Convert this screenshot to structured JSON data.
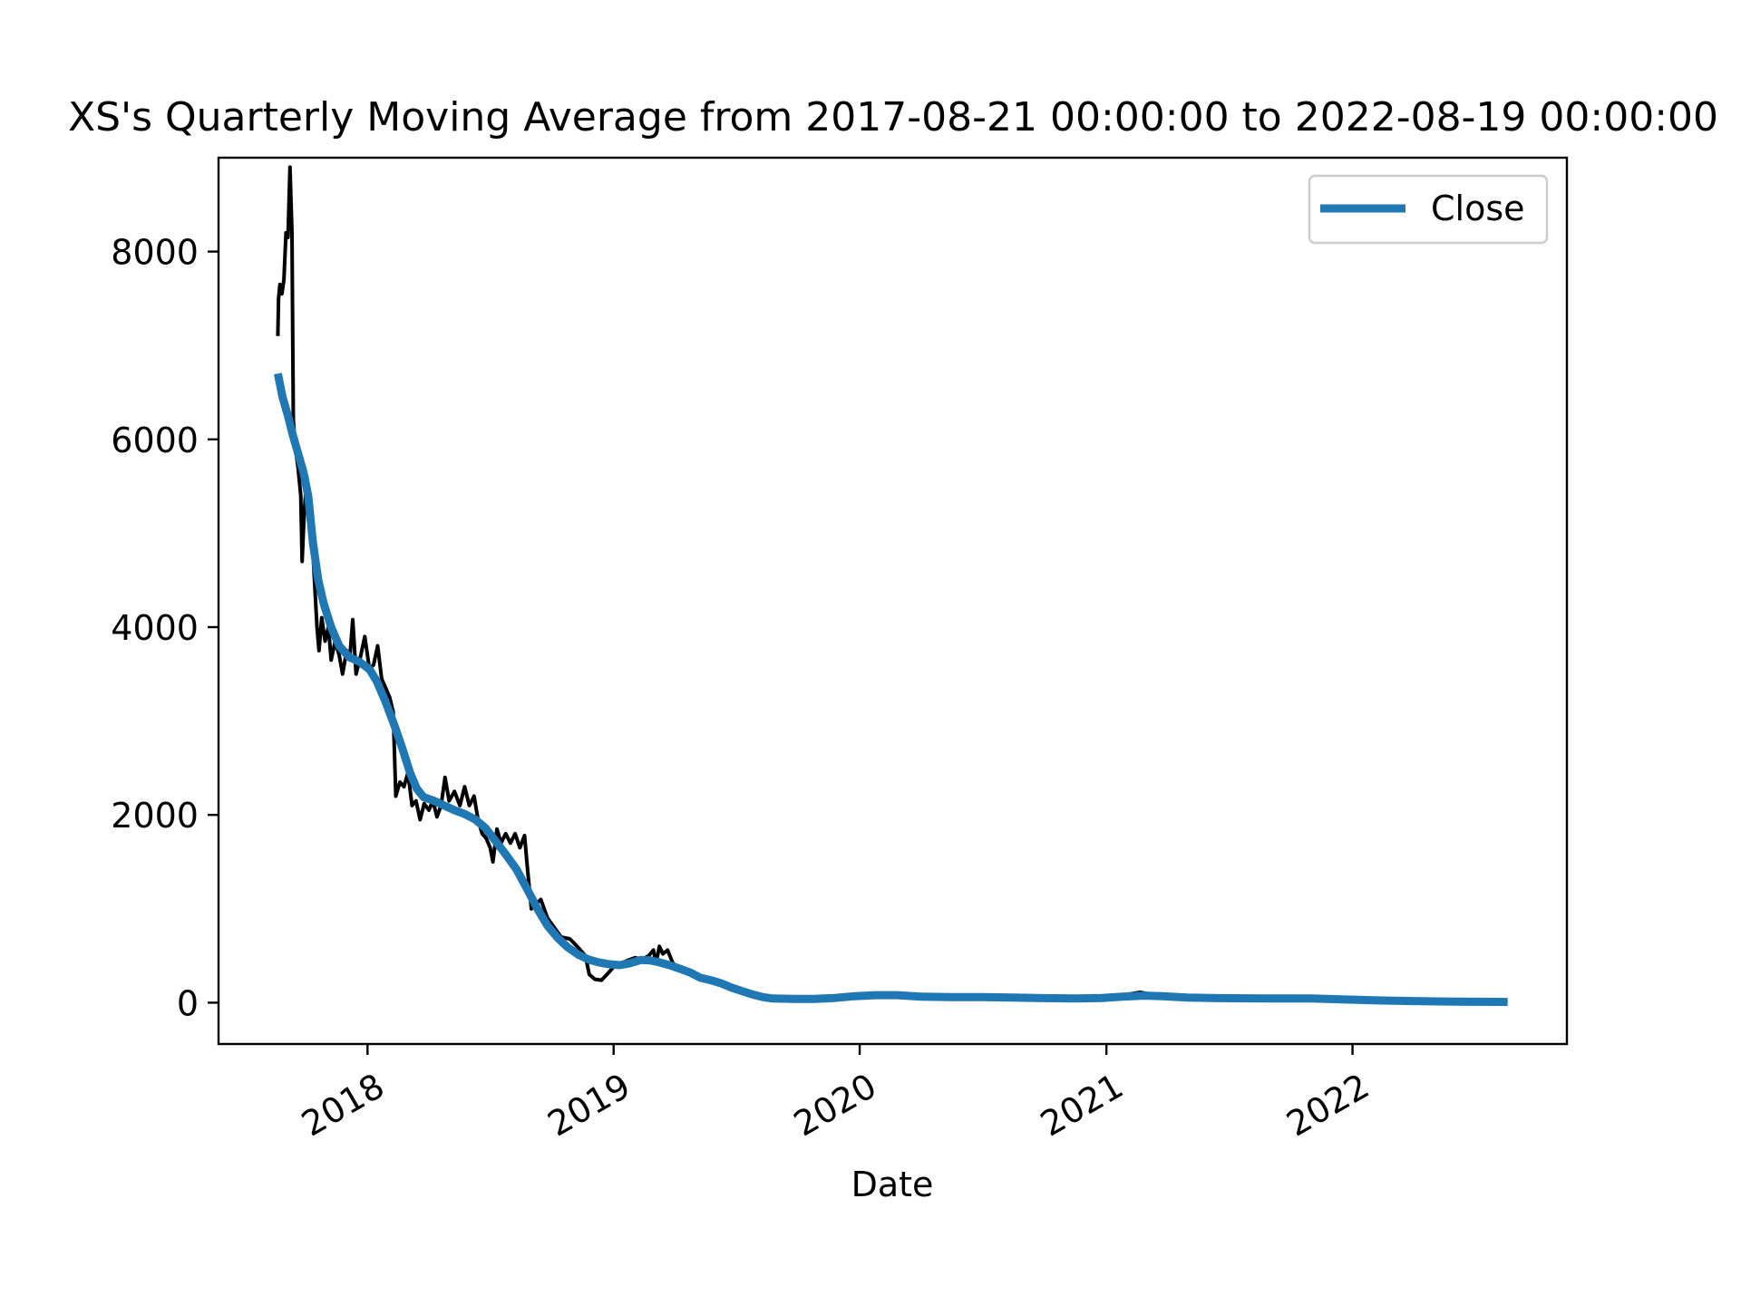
{
  "chart_data": {
    "type": "line",
    "title": "XS's Quarterly Moving Average from 2017-08-21 00:00:00 to 2022-08-19 00:00:00",
    "xlabel": "Date",
    "ylabel": "",
    "xlim": [
      "2017-05-25",
      "2022-11-15"
    ],
    "ylim": [
      -440,
      9000
    ],
    "x_ticks": [
      {
        "date": "2018-01-01",
        "label": "2018"
      },
      {
        "date": "2019-01-01",
        "label": "2019"
      },
      {
        "date": "2020-01-01",
        "label": "2020"
      },
      {
        "date": "2021-01-01",
        "label": "2021"
      },
      {
        "date": "2022-01-01",
        "label": "2022"
      }
    ],
    "y_ticks": [
      0,
      2000,
      4000,
      6000,
      8000
    ],
    "grid": false,
    "legend": {
      "position": "top-right",
      "entries": [
        "Close"
      ]
    },
    "series": [
      {
        "key": "raw",
        "color": "#000000",
        "points": [
          [
            "2017-08-21",
            7100
          ],
          [
            "2017-08-22",
            7500
          ],
          [
            "2017-08-24",
            7650
          ],
          [
            "2017-08-27",
            7550
          ],
          [
            "2017-08-30",
            7700
          ],
          [
            "2017-09-02",
            8200
          ],
          [
            "2017-09-05",
            8150
          ],
          [
            "2017-09-08",
            8900
          ],
          [
            "2017-09-11",
            8200
          ],
          [
            "2017-09-13",
            6200
          ],
          [
            "2017-09-16",
            5900
          ],
          [
            "2017-09-20",
            5700
          ],
          [
            "2017-09-24",
            5400
          ],
          [
            "2017-09-26",
            4700
          ],
          [
            "2017-09-29",
            5200
          ],
          [
            "2017-10-03",
            5600
          ],
          [
            "2017-10-08",
            5200
          ],
          [
            "2017-10-12",
            4800
          ],
          [
            "2017-10-18",
            4000
          ],
          [
            "2017-10-21",
            3750
          ],
          [
            "2017-10-25",
            4100
          ],
          [
            "2017-10-30",
            3850
          ],
          [
            "2017-11-04",
            4000
          ],
          [
            "2017-11-08",
            3650
          ],
          [
            "2017-11-14",
            3850
          ],
          [
            "2017-11-20",
            3700
          ],
          [
            "2017-11-25",
            3500
          ],
          [
            "2017-12-01",
            3750
          ],
          [
            "2017-12-06",
            3700
          ],
          [
            "2017-12-10",
            4080
          ],
          [
            "2017-12-15",
            3500
          ],
          [
            "2017-12-22",
            3700
          ],
          [
            "2017-12-28",
            3900
          ],
          [
            "2018-01-04",
            3550
          ],
          [
            "2018-01-10",
            3600
          ],
          [
            "2018-01-16",
            3800
          ],
          [
            "2018-01-22",
            3450
          ],
          [
            "2018-01-28",
            3350
          ],
          [
            "2018-02-03",
            3250
          ],
          [
            "2018-02-08",
            3100
          ],
          [
            "2018-02-12",
            2200
          ],
          [
            "2018-02-18",
            2350
          ],
          [
            "2018-02-24",
            2300
          ],
          [
            "2018-03-02",
            2450
          ],
          [
            "2018-03-08",
            2100
          ],
          [
            "2018-03-14",
            2150
          ],
          [
            "2018-03-20",
            1950
          ],
          [
            "2018-03-26",
            2120
          ],
          [
            "2018-04-02",
            2050
          ],
          [
            "2018-04-08",
            2150
          ],
          [
            "2018-04-14",
            1980
          ],
          [
            "2018-04-20",
            2100
          ],
          [
            "2018-04-26",
            2400
          ],
          [
            "2018-05-02",
            2150
          ],
          [
            "2018-05-10",
            2250
          ],
          [
            "2018-05-18",
            2100
          ],
          [
            "2018-05-25",
            2300
          ],
          [
            "2018-06-01",
            2100
          ],
          [
            "2018-06-08",
            2200
          ],
          [
            "2018-06-14",
            1950
          ],
          [
            "2018-06-20",
            1800
          ],
          [
            "2018-06-26",
            1750
          ],
          [
            "2018-07-02",
            1650
          ],
          [
            "2018-07-06",
            1500
          ],
          [
            "2018-07-12",
            1850
          ],
          [
            "2018-07-18",
            1700
          ],
          [
            "2018-07-25",
            1800
          ],
          [
            "2018-08-01",
            1700
          ],
          [
            "2018-08-08",
            1800
          ],
          [
            "2018-08-15",
            1650
          ],
          [
            "2018-08-22",
            1780
          ],
          [
            "2018-08-26",
            1450
          ],
          [
            "2018-09-01",
            1000
          ],
          [
            "2018-09-08",
            1050
          ],
          [
            "2018-09-15",
            1100
          ],
          [
            "2018-09-25",
            900
          ],
          [
            "2018-10-05",
            800
          ],
          [
            "2018-10-15",
            700
          ],
          [
            "2018-10-28",
            680
          ],
          [
            "2018-11-08",
            600
          ],
          [
            "2018-11-20",
            500
          ],
          [
            "2018-11-26",
            300
          ],
          [
            "2018-12-04",
            250
          ],
          [
            "2018-12-14",
            240
          ],
          [
            "2018-12-22",
            300
          ],
          [
            "2019-01-01",
            380
          ],
          [
            "2019-01-12",
            420
          ],
          [
            "2019-01-22",
            450
          ],
          [
            "2019-02-02",
            480
          ],
          [
            "2019-02-12",
            460
          ],
          [
            "2019-02-22",
            500
          ],
          [
            "2019-03-01",
            560
          ],
          [
            "2019-03-05",
            420
          ],
          [
            "2019-03-10",
            600
          ],
          [
            "2019-03-15",
            520
          ],
          [
            "2019-03-22",
            560
          ],
          [
            "2019-03-30",
            420
          ],
          [
            "2019-04-10",
            360
          ],
          [
            "2019-04-22",
            320
          ],
          [
            "2019-05-05",
            280
          ],
          [
            "2019-05-20",
            240
          ],
          [
            "2019-06-05",
            200
          ],
          [
            "2019-06-25",
            160
          ],
          [
            "2019-07-15",
            120
          ],
          [
            "2019-08-05",
            80
          ],
          [
            "2019-08-25",
            55
          ],
          [
            "2019-09-20",
            45
          ],
          [
            "2019-10-20",
            50
          ],
          [
            "2019-11-20",
            60
          ],
          [
            "2019-12-20",
            75
          ],
          [
            "2020-01-20",
            85
          ],
          [
            "2020-02-20",
            95
          ],
          [
            "2020-03-15",
            70
          ],
          [
            "2020-04-20",
            60
          ],
          [
            "2020-06-01",
            60
          ],
          [
            "2020-07-15",
            55
          ],
          [
            "2020-09-01",
            50
          ],
          [
            "2020-10-15",
            45
          ],
          [
            "2020-12-01",
            50
          ],
          [
            "2021-01-15",
            70
          ],
          [
            "2021-02-20",
            110
          ],
          [
            "2021-03-15",
            80
          ],
          [
            "2021-04-20",
            60
          ],
          [
            "2021-06-01",
            55
          ],
          [
            "2021-08-01",
            50
          ],
          [
            "2021-10-01",
            45
          ],
          [
            "2021-12-01",
            35
          ],
          [
            "2022-02-01",
            25
          ],
          [
            "2022-04-01",
            20
          ],
          [
            "2022-06-01",
            15
          ],
          [
            "2022-08-19",
            12
          ]
        ]
      },
      {
        "key": "ma",
        "name": "Close",
        "color": "#1f77b4",
        "points": [
          [
            "2017-08-21",
            6700
          ],
          [
            "2017-08-28",
            6450
          ],
          [
            "2017-09-05",
            6250
          ],
          [
            "2017-09-12",
            6050
          ],
          [
            "2017-09-20",
            5850
          ],
          [
            "2017-09-28",
            5650
          ],
          [
            "2017-10-05",
            5400
          ],
          [
            "2017-10-12",
            4900
          ],
          [
            "2017-10-20",
            4500
          ],
          [
            "2017-10-28",
            4250
          ],
          [
            "2017-11-08",
            4000
          ],
          [
            "2017-11-20",
            3800
          ],
          [
            "2017-12-05",
            3680
          ],
          [
            "2017-12-20",
            3630
          ],
          [
            "2018-01-04",
            3550
          ],
          [
            "2018-01-15",
            3420
          ],
          [
            "2018-01-28",
            3200
          ],
          [
            "2018-02-10",
            2950
          ],
          [
            "2018-02-22",
            2700
          ],
          [
            "2018-03-05",
            2450
          ],
          [
            "2018-03-15",
            2280
          ],
          [
            "2018-03-25",
            2190
          ],
          [
            "2018-04-10",
            2150
          ],
          [
            "2018-04-25",
            2100
          ],
          [
            "2018-05-10",
            2050
          ],
          [
            "2018-05-25",
            2010
          ],
          [
            "2018-06-10",
            1950
          ],
          [
            "2018-06-25",
            1860
          ],
          [
            "2018-07-10",
            1720
          ],
          [
            "2018-07-25",
            1580
          ],
          [
            "2018-08-10",
            1420
          ],
          [
            "2018-08-25",
            1220
          ],
          [
            "2018-09-10",
            1000
          ],
          [
            "2018-09-25",
            820
          ],
          [
            "2018-10-10",
            690
          ],
          [
            "2018-10-25",
            590
          ],
          [
            "2018-11-10",
            510
          ],
          [
            "2018-11-25",
            460
          ],
          [
            "2018-12-10",
            430
          ],
          [
            "2018-12-25",
            410
          ],
          [
            "2019-01-10",
            400
          ],
          [
            "2019-01-25",
            420
          ],
          [
            "2019-02-10",
            455
          ],
          [
            "2019-02-25",
            450
          ],
          [
            "2019-03-10",
            430
          ],
          [
            "2019-03-25",
            400
          ],
          [
            "2019-04-10",
            360
          ],
          [
            "2019-04-25",
            320
          ],
          [
            "2019-05-10",
            265
          ],
          [
            "2019-05-25",
            240
          ],
          [
            "2019-06-10",
            205
          ],
          [
            "2019-06-25",
            160
          ],
          [
            "2019-07-10",
            125
          ],
          [
            "2019-07-25",
            90
          ],
          [
            "2019-08-10",
            60
          ],
          [
            "2019-08-25",
            45
          ],
          [
            "2019-09-25",
            40
          ],
          [
            "2019-10-25",
            40
          ],
          [
            "2019-11-25",
            50
          ],
          [
            "2019-12-25",
            70
          ],
          [
            "2020-01-25",
            80
          ],
          [
            "2020-02-25",
            80
          ],
          [
            "2020-04-01",
            65
          ],
          [
            "2020-05-15",
            60
          ],
          [
            "2020-07-01",
            60
          ],
          [
            "2020-08-15",
            55
          ],
          [
            "2020-10-01",
            48
          ],
          [
            "2020-11-15",
            45
          ],
          [
            "2020-12-25",
            50
          ],
          [
            "2021-01-25",
            65
          ],
          [
            "2021-02-25",
            75
          ],
          [
            "2021-03-25",
            70
          ],
          [
            "2021-05-01",
            55
          ],
          [
            "2021-06-15",
            48
          ],
          [
            "2021-08-01",
            46
          ],
          [
            "2021-09-15",
            45
          ],
          [
            "2021-11-01",
            45
          ],
          [
            "2021-12-15",
            35
          ],
          [
            "2022-02-01",
            25
          ],
          [
            "2022-04-01",
            18
          ],
          [
            "2022-06-01",
            12
          ],
          [
            "2022-08-19",
            8
          ]
        ]
      }
    ]
  }
}
